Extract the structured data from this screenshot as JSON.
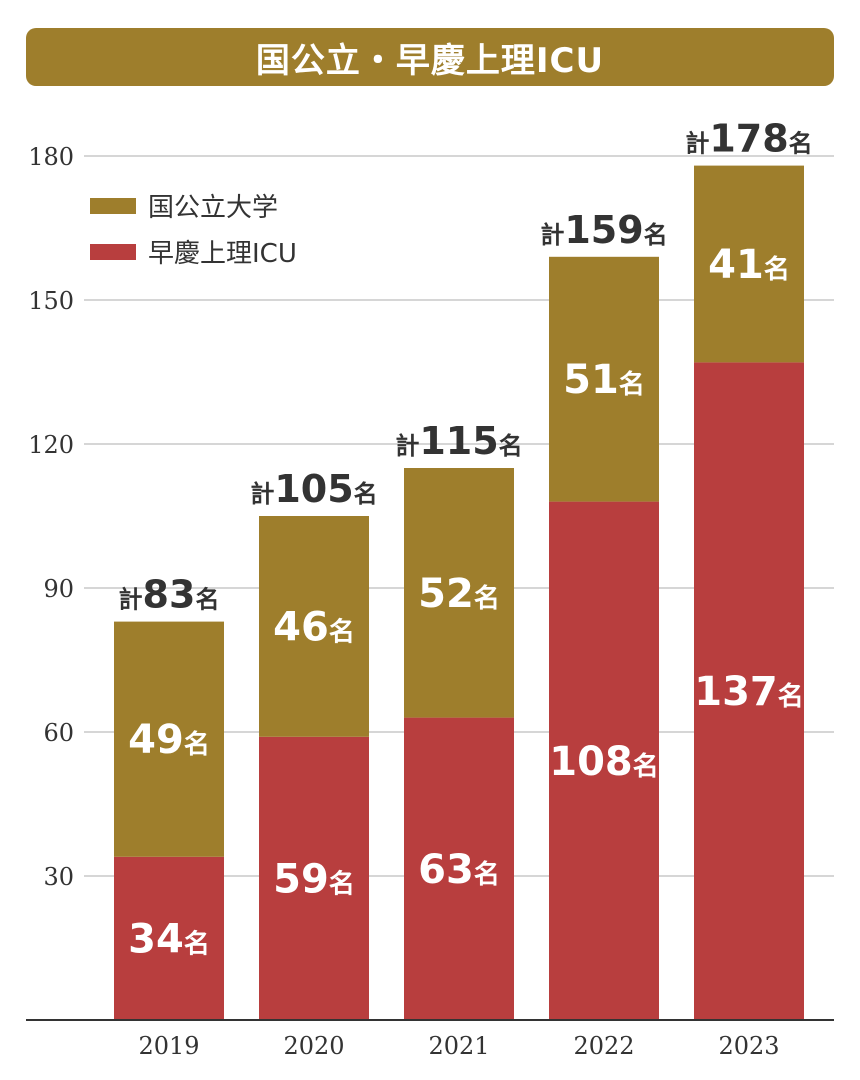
{
  "title": "国公立・早慶上理ICU",
  "colors": {
    "title_bg": "#9E7E2C",
    "kokkoritsu": "#9E7E2C",
    "sokei": "#B83E3E",
    "grid": "#c8c8c8",
    "axis_text": "#333333",
    "total_text": "#333333",
    "segment_text": "#ffffff"
  },
  "chart_data": {
    "type": "bar",
    "stacked": true,
    "categories": [
      "2019",
      "2020",
      "2021",
      "2022",
      "2023"
    ],
    "series": [
      {
        "name": "早慶上理ICU",
        "color": "#B83E3E",
        "values": [
          34,
          59,
          63,
          108,
          137
        ]
      },
      {
        "name": "国公立大学",
        "color": "#9E7E2C",
        "values": [
          49,
          46,
          52,
          51,
          41
        ]
      }
    ],
    "totals": [
      83,
      105,
      115,
      159,
      178
    ],
    "y_ticks": [
      30,
      60,
      90,
      120,
      150,
      180
    ],
    "ylim": [
      0,
      180
    ],
    "total_prefix": "計",
    "unit": "名",
    "grid": true,
    "legend_position": "top-left",
    "legend_order": [
      "国公立大学",
      "早慶上理ICU"
    ]
  }
}
